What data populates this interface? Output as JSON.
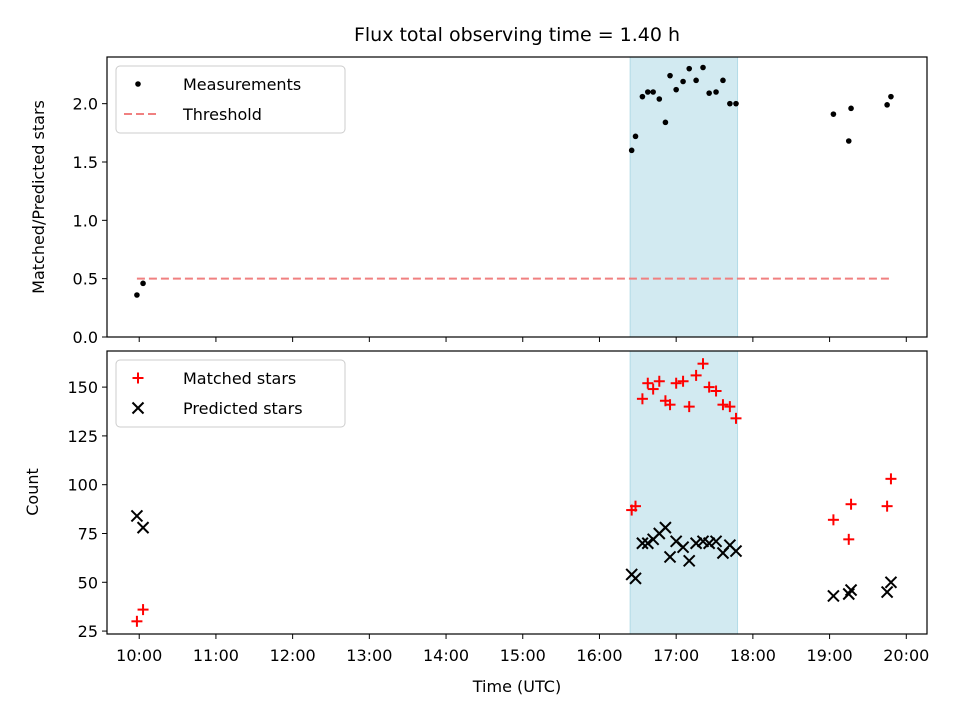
{
  "chart_data": [
    {
      "type": "scatter",
      "title": "Flux total observing time = 1.40 h",
      "ylabel": "Matched/Predicted stars",
      "ylim": [
        0,
        2.4
      ],
      "yticks": [
        0.0,
        0.5,
        1.0,
        1.5,
        2.0
      ],
      "ytick_labels": [
        "0.0",
        "0.5",
        "1.0",
        "1.5",
        "2.0"
      ],
      "xlim": [
        9.58,
        20.27
      ],
      "xticks": [
        10,
        11,
        12,
        13,
        14,
        15,
        16,
        17,
        18,
        19,
        20
      ],
      "shaded_span": [
        16.4,
        17.8
      ],
      "shaded_color": "#add8e6",
      "legend": {
        "location": "upper-left",
        "entries": [
          "Measurements",
          "Threshold"
        ]
      },
      "threshold": {
        "name": "Threshold",
        "value": 0.5,
        "x_range": [
          9.97,
          19.8
        ],
        "color": "#f08080"
      },
      "series": [
        {
          "name": "Measurements",
          "marker": "dot",
          "color": "#000000",
          "points": [
            [
              9.97,
              0.36
            ],
            [
              10.05,
              0.46
            ],
            [
              16.42,
              1.6
            ],
            [
              16.47,
              1.72
            ],
            [
              16.56,
              2.06
            ],
            [
              16.63,
              2.1
            ],
            [
              16.7,
              2.1
            ],
            [
              16.78,
              2.04
            ],
            [
              16.86,
              1.84
            ],
            [
              16.92,
              2.24
            ],
            [
              17.0,
              2.12
            ],
            [
              17.09,
              2.19
            ],
            [
              17.17,
              2.3
            ],
            [
              17.26,
              2.2
            ],
            [
              17.35,
              2.31
            ],
            [
              17.43,
              2.09
            ],
            [
              17.52,
              2.1
            ],
            [
              17.61,
              2.2
            ],
            [
              17.7,
              2.0
            ],
            [
              17.78,
              2.0
            ],
            [
              19.05,
              1.91
            ],
            [
              19.25,
              1.68
            ],
            [
              19.28,
              1.96
            ],
            [
              19.75,
              1.99
            ],
            [
              19.8,
              2.06
            ]
          ]
        }
      ]
    },
    {
      "type": "scatter",
      "xlabel": "Time (UTC)",
      "ylabel": "Count",
      "ylim": [
        23.5,
        168.5
      ],
      "yticks": [
        25,
        50,
        75,
        100,
        125,
        150
      ],
      "ytick_labels": [
        "25",
        "50",
        "75",
        "100",
        "125",
        "150"
      ],
      "xlim": [
        9.58,
        20.27
      ],
      "xticks": [
        10,
        11,
        12,
        13,
        14,
        15,
        16,
        17,
        18,
        19,
        20
      ],
      "xtick_labels": [
        "10:00",
        "11:00",
        "12:00",
        "13:00",
        "14:00",
        "15:00",
        "16:00",
        "17:00",
        "18:00",
        "19:00",
        "20:00"
      ],
      "shaded_span": [
        16.4,
        17.8
      ],
      "shaded_color": "#add8e6",
      "legend": {
        "location": "upper-left",
        "entries": [
          "Matched stars",
          "Predicted stars"
        ]
      },
      "series": [
        {
          "name": "Matched stars",
          "marker": "plus",
          "color": "#ff0000",
          "points": [
            [
              9.97,
              30
            ],
            [
              10.05,
              36
            ],
            [
              16.42,
              87
            ],
            [
              16.47,
              89
            ],
            [
              16.56,
              144
            ],
            [
              16.63,
              152
            ],
            [
              16.7,
              149
            ],
            [
              16.78,
              153
            ],
            [
              16.86,
              143
            ],
            [
              16.92,
              141
            ],
            [
              17.0,
              152
            ],
            [
              17.09,
              153
            ],
            [
              17.17,
              140
            ],
            [
              17.26,
              156
            ],
            [
              17.35,
              162
            ],
            [
              17.43,
              150
            ],
            [
              17.52,
              148
            ],
            [
              17.61,
              141
            ],
            [
              17.7,
              140
            ],
            [
              17.78,
              134
            ],
            [
              19.05,
              82
            ],
            [
              19.25,
              72
            ],
            [
              19.28,
              90
            ],
            [
              19.75,
              89
            ],
            [
              19.8,
              103
            ]
          ]
        },
        {
          "name": "Predicted stars",
          "marker": "x",
          "color": "#000000",
          "points": [
            [
              9.97,
              84
            ],
            [
              10.05,
              78
            ],
            [
              16.42,
              54
            ],
            [
              16.47,
              52
            ],
            [
              16.56,
              70
            ],
            [
              16.63,
              70
            ],
            [
              16.7,
              72
            ],
            [
              16.78,
              75
            ],
            [
              16.86,
              78
            ],
            [
              16.92,
              63
            ],
            [
              17.0,
              71
            ],
            [
              17.09,
              68
            ],
            [
              17.17,
              61
            ],
            [
              17.26,
              70
            ],
            [
              17.35,
              71
            ],
            [
              17.43,
              70
            ],
            [
              17.52,
              71
            ],
            [
              17.61,
              65
            ],
            [
              17.7,
              69
            ],
            [
              17.78,
              66
            ],
            [
              19.05,
              43
            ],
            [
              19.25,
              44
            ],
            [
              19.28,
              46
            ],
            [
              19.75,
              45
            ],
            [
              19.8,
              50
            ]
          ]
        }
      ]
    }
  ]
}
